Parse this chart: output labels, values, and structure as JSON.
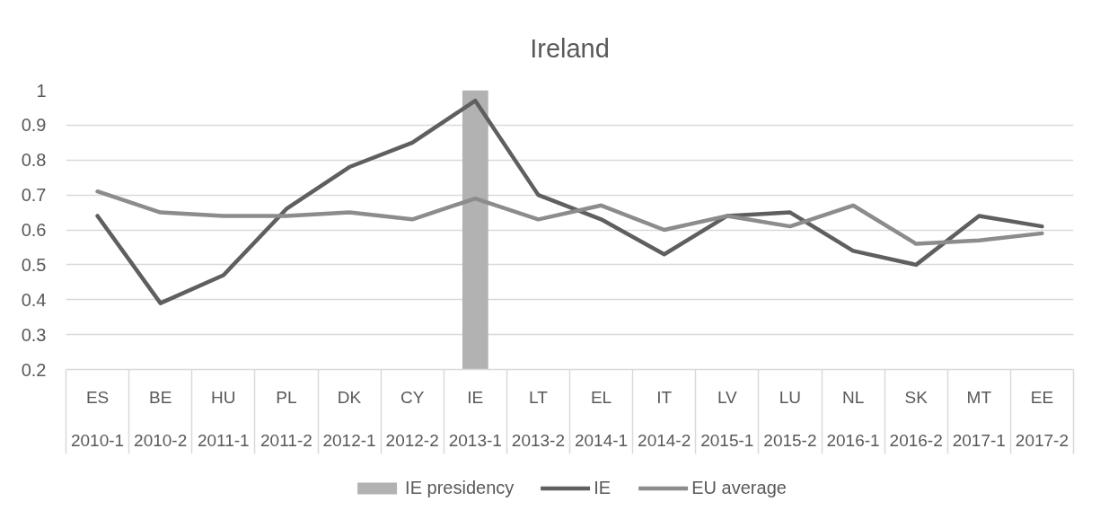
{
  "chart_data": {
    "type": "line",
    "title": "Ireland",
    "categories": [
      "ES\n2010-1",
      "BE\n2010-2",
      "HU\n2011-1",
      "PL\n2011-2",
      "DK\n2012-1",
      "CY\n2012-2",
      "IE\n2013-1",
      "LT\n2013-2",
      "EL\n2014-1",
      "IT\n2014-2",
      "LV\n2015-1",
      "LU\n2015-2",
      "NL\n2016-1",
      "SK\n2016-2",
      "MT\n2017-1",
      "EE\n2017-2"
    ],
    "series": [
      {
        "name": "IE presidency",
        "type": "bar",
        "color": "#b2b2b2",
        "values": [
          null,
          null,
          null,
          null,
          null,
          null,
          1,
          null,
          null,
          null,
          null,
          null,
          null,
          null,
          null,
          null
        ]
      },
      {
        "name": "IE",
        "color": "#5f5f5f",
        "values": [
          0.64,
          0.39,
          0.47,
          0.66,
          0.78,
          0.85,
          0.97,
          0.7,
          0.63,
          0.53,
          0.64,
          0.65,
          0.54,
          0.5,
          0.64,
          0.61
        ]
      },
      {
        "name": "EU average",
        "color": "#8c8c8c",
        "values": [
          0.71,
          0.65,
          0.64,
          0.64,
          0.65,
          0.63,
          0.69,
          0.63,
          0.67,
          0.6,
          0.64,
          0.61,
          0.67,
          0.56,
          0.57,
          0.59
        ]
      }
    ],
    "ylim": [
      0.2,
      1
    ],
    "yticks": [
      0.2,
      0.3,
      0.4,
      0.5,
      0.6,
      0.7,
      0.8,
      0.9,
      1
    ],
    "grid": "y",
    "legend": "bottom",
    "line_style": "solid"
  }
}
